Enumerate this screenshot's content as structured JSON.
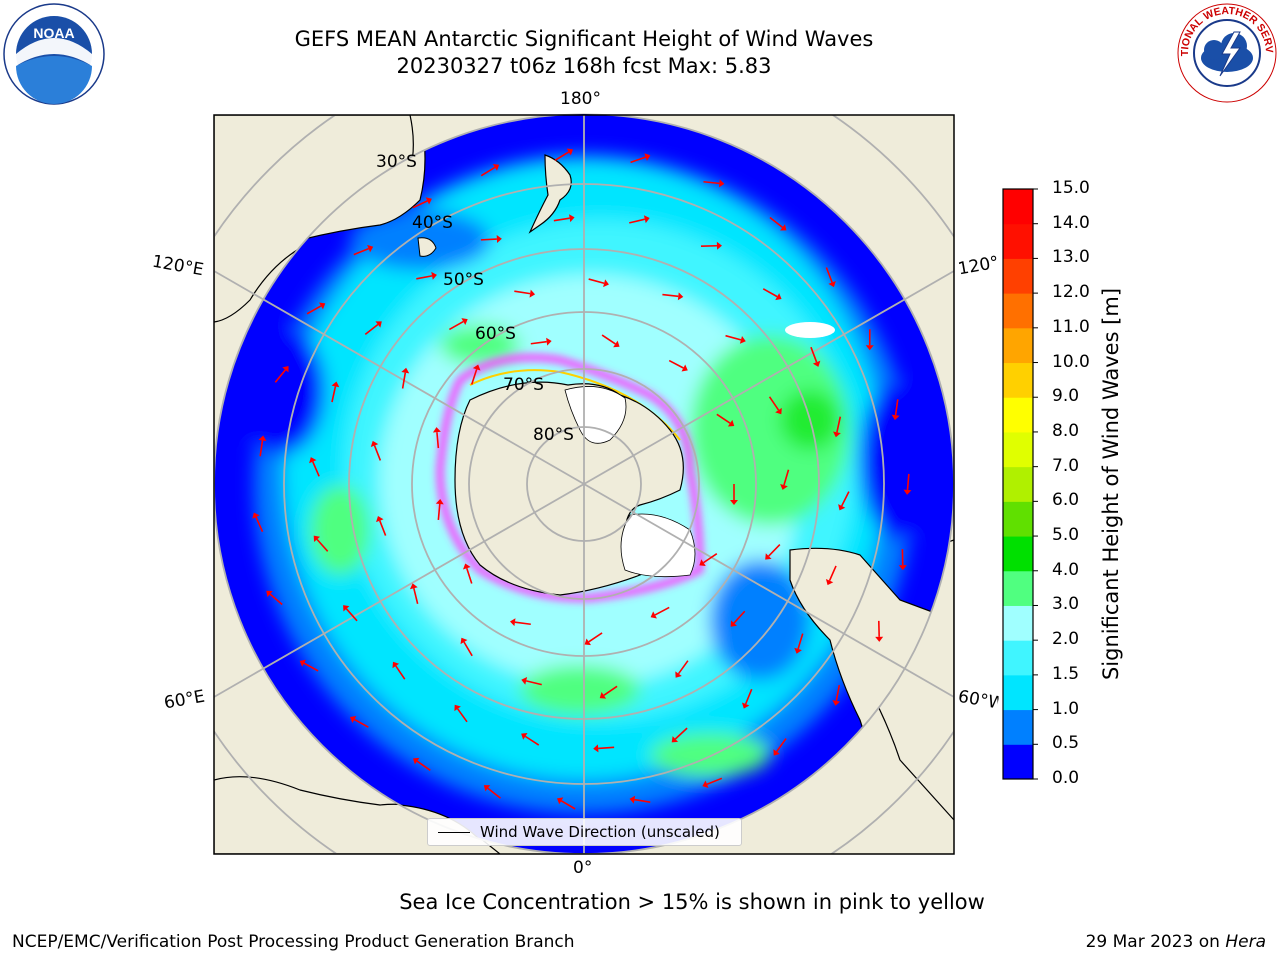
{
  "title_line1": "GEFS MEAN Antarctic Significant Height of Wind Waves",
  "title_line2": "20230327 t06z 168h fcst   Max: 5.83",
  "logos": {
    "left": {
      "icon": "noaa-logo-icon",
      "text": "NOAA"
    },
    "right": {
      "icon": "nws-logo-icon",
      "text": "NATIONAL WEATHER SERVICE"
    }
  },
  "longitude_labels": {
    "top": "180°",
    "bottom": "0°",
    "upper_left": "120°E",
    "lower_left": "60°E",
    "upper_right": "120°",
    "lower_right": "60°W"
  },
  "latitude_labels": [
    "30°S",
    "40°S",
    "50°S",
    "60°S",
    "70°S",
    "80°S"
  ],
  "colorbar": {
    "title": "Significant Height of Wind Waves [m]",
    "ticks": [
      "0.0",
      "0.5",
      "1.0",
      "1.5",
      "2.0",
      "3.0",
      "4.0",
      "5.0",
      "6.0",
      "7.0",
      "8.0",
      "9.0",
      "10.0",
      "11.0",
      "12.0",
      "13.0",
      "14.0",
      "15.0"
    ],
    "colors": [
      "#0000ff",
      "#0080ff",
      "#00e5ff",
      "#40f5ff",
      "#a0ffff",
      "#50ff80",
      "#00e000",
      "#60e000",
      "#b0f000",
      "#e0ff00",
      "#ffff00",
      "#ffd000",
      "#ffa500",
      "#ff7000",
      "#ff4000",
      "#ff1000",
      "#ff0000"
    ]
  },
  "legend": {
    "label": "Wind Wave Direction (unscaled)"
  },
  "ice_note": "Sea Ice Concentration > 15% is shown in pink to yellow",
  "footer_left": "NCEP/EMC/Verification Post Processing Product Generation Branch",
  "footer_right_prefix": "29 Mar 2023 on ",
  "footer_right_host": "Hera",
  "colors": {
    "land": "#efecda",
    "ice_pink": "#ff40ff",
    "arrow": "#ff0000",
    "grid": "#b0b0b0"
  }
}
